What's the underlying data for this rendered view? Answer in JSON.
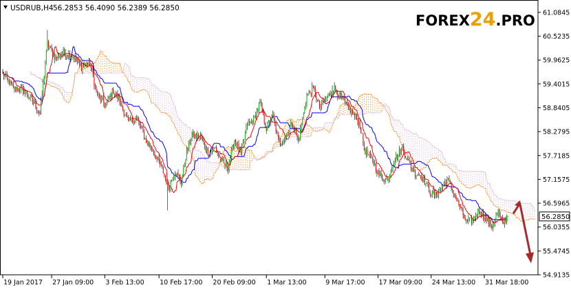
{
  "header": {
    "symbol": "USDRUB,H4",
    "ohlc": "56.2853 56.4090 56.2389 56.2850"
  },
  "logo": {
    "text_a": "FOREX",
    "text_b": "24",
    "text_c": ".PRO"
  },
  "colors": {
    "background": "#ffffff",
    "axis": "#000000",
    "tenkan": "#ff0000",
    "kijun": "#0000ff",
    "span_a": "#ff8c1a",
    "span_b": "#d8b4d8",
    "bull_candle": "#00cc00",
    "bear_candle": "#ff0000",
    "candle_wick": "#000000",
    "forecast_arrow": "#a52a2a",
    "price_label_bg": "#ffffff"
  },
  "chart_data": {
    "type": "candlestick",
    "symbol": "USDRUB",
    "timeframe": "H4",
    "indicator": "Ichimoku Kinko Hyo",
    "ylim": [
      54.9135,
      61.3745
    ],
    "y_ticks": [
      61.0845,
      60.5235,
      59.9625,
      59.4015,
      58.8405,
      58.2795,
      57.7185,
      57.1575,
      56.5965,
      56.0355,
      55.4745,
      54.9135
    ],
    "x_ticks": [
      {
        "label": "19 Jan 2017",
        "index": 0
      },
      {
        "label": "27 Jan 09:00",
        "index": 46
      },
      {
        "label": "3 Feb 13:00",
        "index": 96
      },
      {
        "label": "10 Feb 17:00",
        "index": 147
      },
      {
        "label": "20 Feb 09:00",
        "index": 197
      },
      {
        "label": "1 Mar 13:00",
        "index": 248
      },
      {
        "label": "9 Mar 17:00",
        "index": 303
      },
      {
        "label": "17 Mar 09:00",
        "index": 353
      },
      {
        "label": "24 Mar 13:00",
        "index": 403
      },
      {
        "label": "31 Mar 18:00",
        "index": 453
      }
    ],
    "current_price": 56.285,
    "current_price_label": "56.2850",
    "bar_count": 476,
    "cloud_shift": 26,
    "anchors": [
      [
        0,
        59.65
      ],
      [
        10,
        59.3
      ],
      [
        20,
        59.25
      ],
      [
        28,
        59.0
      ],
      [
        35,
        58.7
      ],
      [
        42,
        60.35
      ],
      [
        50,
        60.0
      ],
      [
        58,
        60.15
      ],
      [
        66,
        60.05
      ],
      [
        74,
        59.8
      ],
      [
        82,
        59.9
      ],
      [
        88,
        59.2
      ],
      [
        96,
        58.9
      ],
      [
        104,
        59.25
      ],
      [
        110,
        59.0
      ],
      [
        118,
        58.5
      ],
      [
        126,
        58.6
      ],
      [
        134,
        58.1
      ],
      [
        142,
        57.8
      ],
      [
        150,
        57.4
      ],
      [
        156,
        56.95
      ],
      [
        162,
        57.35
      ],
      [
        168,
        57.1
      ],
      [
        172,
        57.7
      ],
      [
        178,
        58.2
      ],
      [
        186,
        58.15
      ],
      [
        194,
        57.75
      ],
      [
        200,
        57.9
      ],
      [
        206,
        57.55
      ],
      [
        212,
        57.45
      ],
      [
        218,
        58.1
      ],
      [
        224,
        57.75
      ],
      [
        230,
        58.45
      ],
      [
        236,
        58.55
      ],
      [
        242,
        58.95
      ],
      [
        248,
        58.35
      ],
      [
        254,
        58.65
      ],
      [
        260,
        58.0
      ],
      [
        266,
        58.15
      ],
      [
        272,
        58.5
      ],
      [
        278,
        58.05
      ],
      [
        286,
        59.1
      ],
      [
        292,
        59.3
      ],
      [
        298,
        58.85
      ],
      [
        304,
        59.05
      ],
      [
        312,
        59.3
      ],
      [
        320,
        59.0
      ],
      [
        328,
        58.75
      ],
      [
        336,
        58.45
      ],
      [
        340,
        57.85
      ],
      [
        348,
        57.6
      ],
      [
        354,
        57.25
      ],
      [
        362,
        57.15
      ],
      [
        368,
        57.6
      ],
      [
        376,
        57.9
      ],
      [
        382,
        57.55
      ],
      [
        388,
        57.3
      ],
      [
        394,
        57.25
      ],
      [
        400,
        56.95
      ],
      [
        406,
        56.75
      ],
      [
        412,
        56.95
      ],
      [
        418,
        57.15
      ],
      [
        424,
        56.85
      ],
      [
        430,
        56.5
      ],
      [
        436,
        56.15
      ],
      [
        442,
        56.2
      ],
      [
        448,
        56.45
      ],
      [
        454,
        56.25
      ],
      [
        460,
        56.05
      ],
      [
        466,
        56.4
      ],
      [
        470,
        56.1
      ],
      [
        475,
        56.285
      ]
    ],
    "forecast": {
      "up_from": 56.35,
      "up_to": 56.6,
      "down_to": 55.25
    }
  }
}
